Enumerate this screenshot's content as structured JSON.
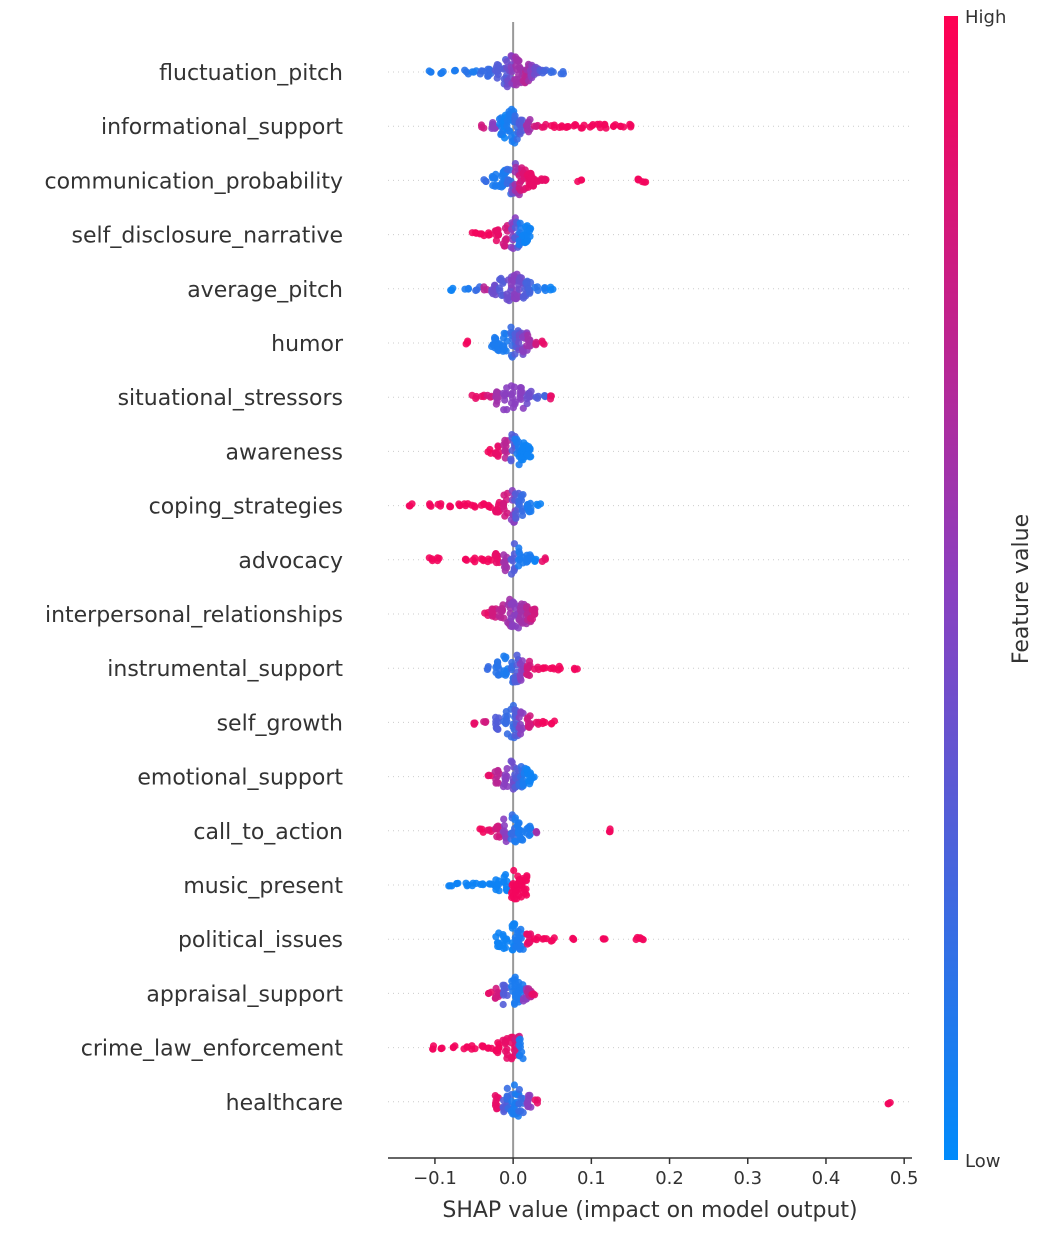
{
  "chart_data": {
    "type": "scatter",
    "subtype": "shap-beeswarm",
    "title": "",
    "xlabel": "SHAP value (impact on model output)",
    "ylabel": "",
    "xlim": [
      -0.16,
      0.51
    ],
    "xticks": [
      -0.1,
      0.0,
      0.1,
      0.2,
      0.3,
      0.4,
      0.5
    ],
    "xtick_labels": [
      "−0.1",
      "0.0",
      "0.1",
      "0.2",
      "0.3",
      "0.4",
      "0.5"
    ],
    "colorbar": {
      "label": "Feature value",
      "high": "High",
      "low": "Low",
      "high_color": "#ff0052",
      "low_color": "#008bfb"
    },
    "features": [
      {
        "name": "fluctuation_pitch",
        "spread": 0.03,
        "points": [
          [
            -0.105,
            0.1
          ],
          [
            -0.09,
            0.1
          ],
          [
            -0.075,
            0.1
          ],
          [
            -0.06,
            0.15
          ],
          [
            -0.05,
            0.1
          ],
          [
            -0.04,
            0.2
          ],
          [
            -0.03,
            0.2
          ],
          [
            -0.02,
            0.3
          ],
          [
            -0.01,
            0.3
          ],
          [
            -0.005,
            0.4
          ],
          [
            0.0,
            0.5
          ],
          [
            0.005,
            0.6
          ],
          [
            0.01,
            0.6
          ],
          [
            0.015,
            0.7
          ],
          [
            0.02,
            0.6
          ],
          [
            0.025,
            0.5
          ],
          [
            0.03,
            0.4
          ],
          [
            0.035,
            0.3
          ],
          [
            0.04,
            0.25
          ],
          [
            0.05,
            0.2
          ],
          [
            0.062,
            0.2
          ]
        ]
      },
      {
        "name": "informational_support",
        "spread": 0.025,
        "points": [
          [
            -0.038,
            0.8
          ],
          [
            -0.025,
            0.5
          ],
          [
            -0.015,
            0.1
          ],
          [
            -0.01,
            0.05
          ],
          [
            -0.005,
            0.1
          ],
          [
            0.0,
            0.1
          ],
          [
            0.005,
            0.2
          ],
          [
            0.01,
            0.3
          ],
          [
            0.02,
            0.6
          ],
          [
            0.03,
            0.8
          ],
          [
            0.04,
            0.9
          ],
          [
            0.05,
            0.95
          ],
          [
            0.06,
            0.95
          ],
          [
            0.07,
            0.95
          ],
          [
            0.08,
            0.95
          ],
          [
            0.09,
            0.95
          ],
          [
            0.1,
            0.95
          ],
          [
            0.11,
            0.95
          ],
          [
            0.12,
            0.95
          ],
          [
            0.13,
            0.95
          ],
          [
            0.14,
            0.95
          ],
          [
            0.148,
            0.95
          ]
        ]
      },
      {
        "name": "communication_probability",
        "spread": 0.027,
        "points": [
          [
            -0.035,
            0.2
          ],
          [
            -0.025,
            0.1
          ],
          [
            -0.015,
            0.1
          ],
          [
            -0.01,
            0.1
          ],
          [
            -0.005,
            0.2
          ],
          [
            0.0,
            0.4
          ],
          [
            0.005,
            0.6
          ],
          [
            0.01,
            0.8
          ],
          [
            0.015,
            0.85
          ],
          [
            0.02,
            0.9
          ],
          [
            0.025,
            0.9
          ],
          [
            0.03,
            0.9
          ],
          [
            0.035,
            0.9
          ],
          [
            0.04,
            0.9
          ],
          [
            0.085,
            0.95
          ],
          [
            0.16,
            0.95
          ],
          [
            0.168,
            0.95
          ]
        ]
      },
      {
        "name": "self_disclosure_narrative",
        "spread": 0.022,
        "points": [
          [
            -0.05,
            0.95
          ],
          [
            -0.04,
            0.95
          ],
          [
            -0.03,
            0.95
          ],
          [
            -0.02,
            0.9
          ],
          [
            -0.01,
            0.8
          ],
          [
            0.0,
            0.5
          ],
          [
            0.005,
            0.3
          ],
          [
            0.01,
            0.1
          ],
          [
            0.015,
            0.05
          ],
          [
            0.02,
            0.05
          ]
        ]
      },
      {
        "name": "average_pitch",
        "spread": 0.028,
        "points": [
          [
            -0.08,
            0.05
          ],
          [
            -0.06,
            0.1
          ],
          [
            -0.045,
            0.2
          ],
          [
            -0.035,
            0.7
          ],
          [
            -0.025,
            0.4
          ],
          [
            -0.015,
            0.3
          ],
          [
            -0.005,
            0.4
          ],
          [
            0.0,
            0.5
          ],
          [
            0.005,
            0.5
          ],
          [
            0.01,
            0.4
          ],
          [
            0.015,
            0.3
          ],
          [
            0.02,
            0.25
          ],
          [
            0.03,
            0.15
          ],
          [
            0.04,
            0.1
          ],
          [
            0.048,
            0.05
          ]
        ]
      },
      {
        "name": "humor",
        "spread": 0.026,
        "points": [
          [
            -0.06,
            0.95
          ],
          [
            -0.025,
            0.1
          ],
          [
            -0.02,
            0.1
          ],
          [
            -0.01,
            0.1
          ],
          [
            0.0,
            0.2
          ],
          [
            0.005,
            0.3
          ],
          [
            0.01,
            0.4
          ],
          [
            0.015,
            0.5
          ],
          [
            0.02,
            0.6
          ],
          [
            0.03,
            0.8
          ],
          [
            0.04,
            0.9
          ]
        ]
      },
      {
        "name": "situational_stressors",
        "spread": 0.028,
        "points": [
          [
            -0.05,
            0.9
          ],
          [
            -0.04,
            0.9
          ],
          [
            -0.03,
            0.8
          ],
          [
            -0.02,
            0.6
          ],
          [
            -0.01,
            0.5
          ],
          [
            0.0,
            0.5
          ],
          [
            0.01,
            0.5
          ],
          [
            0.02,
            0.4
          ],
          [
            0.03,
            0.3
          ],
          [
            0.04,
            0.25
          ],
          [
            0.05,
            0.9
          ]
        ]
      },
      {
        "name": "awareness",
        "spread": 0.02,
        "points": [
          [
            -0.03,
            0.95
          ],
          [
            -0.02,
            0.9
          ],
          [
            -0.01,
            0.7
          ],
          [
            0.0,
            0.3
          ],
          [
            0.005,
            0.1
          ],
          [
            0.01,
            0.05
          ],
          [
            0.015,
            0.05
          ],
          [
            0.02,
            0.05
          ]
        ]
      },
      {
        "name": "coping_strategies",
        "spread": 0.024,
        "points": [
          [
            -0.13,
            0.95
          ],
          [
            -0.105,
            0.95
          ],
          [
            -0.095,
            0.95
          ],
          [
            -0.08,
            0.95
          ],
          [
            -0.07,
            0.95
          ],
          [
            -0.06,
            0.95
          ],
          [
            -0.05,
            0.95
          ],
          [
            -0.04,
            0.95
          ],
          [
            -0.03,
            0.95
          ],
          [
            -0.02,
            0.9
          ],
          [
            -0.01,
            0.8
          ],
          [
            0.0,
            0.5
          ],
          [
            0.005,
            0.3
          ],
          [
            0.01,
            0.2
          ],
          [
            0.02,
            0.1
          ],
          [
            0.033,
            0.05
          ]
        ]
      },
      {
        "name": "advocacy",
        "spread": 0.022,
        "points": [
          [
            -0.105,
            0.95
          ],
          [
            -0.095,
            0.95
          ],
          [
            -0.06,
            0.95
          ],
          [
            -0.05,
            0.95
          ],
          [
            -0.04,
            0.95
          ],
          [
            -0.03,
            0.95
          ],
          [
            -0.02,
            0.9
          ],
          [
            -0.01,
            0.6
          ],
          [
            0.0,
            0.3
          ],
          [
            0.01,
            0.1
          ],
          [
            0.02,
            0.1
          ],
          [
            0.03,
            0.05
          ],
          [
            0.04,
            0.9
          ]
        ]
      },
      {
        "name": "interpersonal_relationships",
        "spread": 0.025,
        "points": [
          [
            -0.035,
            0.9
          ],
          [
            -0.025,
            0.8
          ],
          [
            -0.015,
            0.7
          ],
          [
            -0.005,
            0.6
          ],
          [
            0.0,
            0.5
          ],
          [
            0.005,
            0.5
          ],
          [
            0.01,
            0.6
          ],
          [
            0.015,
            0.6
          ],
          [
            0.02,
            0.7
          ],
          [
            0.025,
            0.8
          ]
        ]
      },
      {
        "name": "instrumental_support",
        "spread": 0.024,
        "points": [
          [
            -0.03,
            0.2
          ],
          [
            -0.02,
            0.15
          ],
          [
            -0.01,
            0.1
          ],
          [
            0.0,
            0.2
          ],
          [
            0.005,
            0.3
          ],
          [
            0.01,
            0.5
          ],
          [
            0.02,
            0.8
          ],
          [
            0.03,
            0.9
          ],
          [
            0.04,
            0.95
          ],
          [
            0.05,
            0.95
          ],
          [
            0.06,
            0.95
          ],
          [
            0.08,
            0.95
          ]
        ]
      },
      {
        "name": "self_growth",
        "spread": 0.024,
        "points": [
          [
            -0.05,
            0.9
          ],
          [
            -0.035,
            0.8
          ],
          [
            -0.02,
            0.3
          ],
          [
            -0.01,
            0.2
          ],
          [
            0.0,
            0.2
          ],
          [
            0.005,
            0.3
          ],
          [
            0.01,
            0.5
          ],
          [
            0.02,
            0.8
          ],
          [
            0.03,
            0.9
          ],
          [
            0.04,
            0.95
          ],
          [
            0.05,
            0.95
          ]
        ]
      },
      {
        "name": "emotional_support",
        "spread": 0.024,
        "points": [
          [
            -0.03,
            0.9
          ],
          [
            -0.02,
            0.7
          ],
          [
            -0.01,
            0.5
          ],
          [
            0.0,
            0.4
          ],
          [
            0.005,
            0.3
          ],
          [
            0.01,
            0.2
          ],
          [
            0.015,
            0.1
          ],
          [
            0.02,
            0.05
          ],
          [
            0.025,
            0.05
          ]
        ]
      },
      {
        "name": "call_to_action",
        "spread": 0.022,
        "points": [
          [
            -0.04,
            0.95
          ],
          [
            -0.03,
            0.9
          ],
          [
            -0.02,
            0.8
          ],
          [
            -0.01,
            0.5
          ],
          [
            0.0,
            0.2
          ],
          [
            0.005,
            0.1
          ],
          [
            0.01,
            0.1
          ],
          [
            0.02,
            0.1
          ],
          [
            0.03,
            0.6
          ],
          [
            0.125,
            0.95
          ]
        ]
      },
      {
        "name": "music_present",
        "spread": 0.028,
        "points": [
          [
            -0.08,
            0.05
          ],
          [
            -0.07,
            0.05
          ],
          [
            -0.06,
            0.05
          ],
          [
            -0.05,
            0.05
          ],
          [
            -0.04,
            0.05
          ],
          [
            -0.03,
            0.05
          ],
          [
            -0.02,
            0.05
          ],
          [
            -0.01,
            0.05
          ],
          [
            0.0,
            0.95
          ],
          [
            0.005,
            0.95
          ],
          [
            0.01,
            0.95
          ],
          [
            0.015,
            0.95
          ]
        ]
      },
      {
        "name": "political_issues",
        "spread": 0.025,
        "points": [
          [
            -0.02,
            0.05
          ],
          [
            -0.01,
            0.05
          ],
          [
            0.0,
            0.05
          ],
          [
            0.005,
            0.1
          ],
          [
            0.01,
            0.1
          ],
          [
            0.02,
            0.9
          ],
          [
            0.03,
            0.95
          ],
          [
            0.04,
            0.95
          ],
          [
            0.05,
            0.95
          ],
          [
            0.078,
            0.95
          ],
          [
            0.115,
            0.95
          ],
          [
            0.16,
            0.95
          ],
          [
            0.165,
            0.95
          ]
        ]
      },
      {
        "name": "appraisal_support",
        "spread": 0.02,
        "points": [
          [
            -0.03,
            0.9
          ],
          [
            -0.02,
            0.8
          ],
          [
            -0.01,
            0.3
          ],
          [
            0.0,
            0.1
          ],
          [
            0.005,
            0.1
          ],
          [
            0.01,
            0.1
          ],
          [
            0.015,
            0.5
          ],
          [
            0.02,
            0.7
          ],
          [
            0.025,
            0.9
          ]
        ]
      },
      {
        "name": "crime_law_enforcement",
        "spread": 0.02,
        "points": [
          [
            -0.1,
            0.95
          ],
          [
            -0.09,
            0.95
          ],
          [
            -0.075,
            0.95
          ],
          [
            -0.06,
            0.95
          ],
          [
            -0.05,
            0.95
          ],
          [
            -0.04,
            0.95
          ],
          [
            -0.03,
            0.95
          ],
          [
            -0.02,
            0.95
          ],
          [
            -0.01,
            0.9
          ],
          [
            0.0,
            0.9
          ],
          [
            0.005,
            0.8
          ],
          [
            0.01,
            0.1
          ]
        ]
      },
      {
        "name": "healthcare",
        "spread": 0.024,
        "points": [
          [
            -0.02,
            0.9
          ],
          [
            -0.01,
            0.3
          ],
          [
            -0.005,
            0.2
          ],
          [
            0.0,
            0.1
          ],
          [
            0.005,
            0.1
          ],
          [
            0.01,
            0.2
          ],
          [
            0.02,
            0.5
          ],
          [
            0.03,
            0.9
          ],
          [
            0.48,
            0.95
          ]
        ]
      }
    ]
  }
}
